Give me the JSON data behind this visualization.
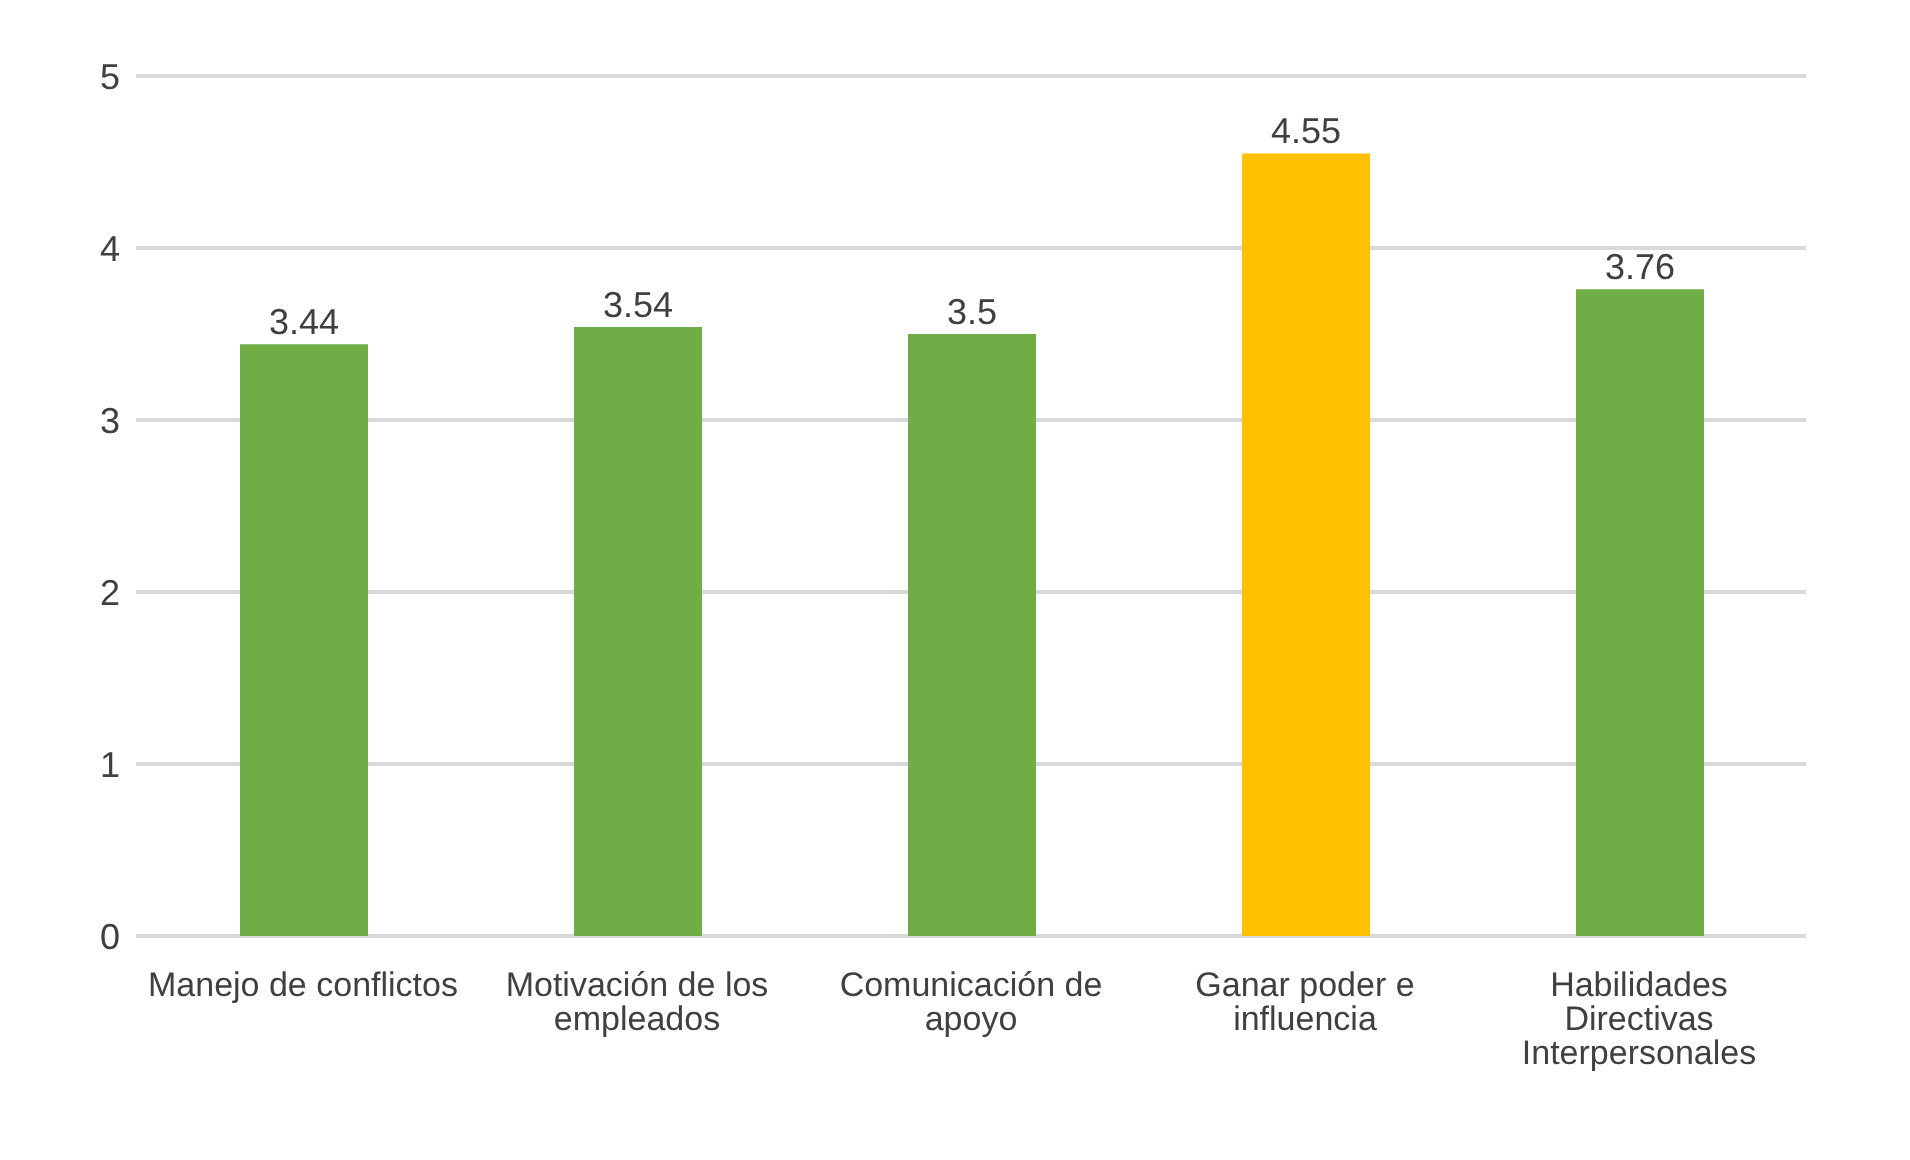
{
  "chart_data": {
    "type": "bar",
    "categories": [
      "Manejo de conflictos",
      "Motivación de los empleados",
      "Comunicación de apoyo",
      "Ganar poder e influencia",
      "Habilidades Directivas Interpersonales"
    ],
    "values": [
      3.44,
      3.54,
      3.5,
      4.55,
      3.76
    ],
    "colors": [
      "#70ad47",
      "#70ad47",
      "#70ad47",
      "#ffc000",
      "#70ad47"
    ],
    "ylim": [
      0,
      5
    ],
    "yticks": [
      0,
      1,
      2,
      3,
      4,
      5
    ],
    "grid": "y",
    "data_labels": true
  }
}
